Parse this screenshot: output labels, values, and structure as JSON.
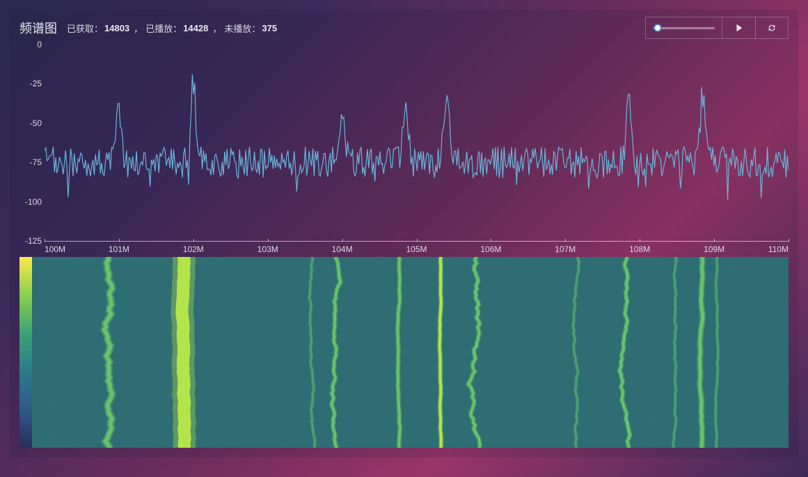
{
  "header": {
    "title": "频谱图",
    "stats": {
      "acquired_label": "已获取：",
      "acquired_value": "14803",
      "played_label": "已播放：",
      "played_value": "14428",
      "unplayed_label": "未播放：",
      "unplayed_value": "375",
      "separator": "，"
    },
    "slider": {
      "position_pct": 8
    }
  },
  "spectrum_chart": {
    "type": "line",
    "line_color": "#6ab5d9",
    "line_width": 1.2,
    "ylim": [
      -125,
      0
    ],
    "y_ticks": [
      0,
      -25,
      -50,
      -75,
      -100,
      -125
    ],
    "x_ticks": [
      "100M",
      "101M",
      "102M",
      "103M",
      "104M",
      "105M",
      "106M",
      "107M",
      "108M",
      "109M",
      "110M"
    ],
    "tick_fontsize": 12,
    "tick_color": "#dcdce8",
    "axis_color": "rgba(255,255,255,0.6)",
    "peaks_freq_mhz": [
      101,
      102,
      104,
      104.85,
      105.4,
      107.85,
      108.85
    ],
    "peaks_db": [
      -40,
      -25,
      -41,
      -38,
      -30,
      -38,
      -30
    ],
    "noise_floor_db": -75,
    "noise_amplitude_db": 10
  },
  "waterfall": {
    "type": "heatmap",
    "background_color": "#2d6d73",
    "noise_tint": "#357a7e",
    "signal_colors": {
      "strong": "#b8e84a",
      "medium": "#6fcf6a",
      "weak": "#4fa86e"
    },
    "colorbar_gradient": [
      "#fce94a",
      "#8bd14c",
      "#3aa374",
      "#2b7a8a",
      "#2e5a8a",
      "#2b2d5c"
    ],
    "signals": [
      {
        "freq_mhz": 101.0,
        "strength": "medium",
        "width": 6,
        "wobble": 14
      },
      {
        "freq_mhz": 102.0,
        "strength": "strong",
        "width": 18,
        "wobble": 4
      },
      {
        "freq_mhz": 103.7,
        "strength": "weak",
        "width": 3,
        "wobble": 6
      },
      {
        "freq_mhz": 104.0,
        "strength": "medium",
        "width": 4,
        "wobble": 10
      },
      {
        "freq_mhz": 104.85,
        "strength": "medium",
        "width": 4,
        "wobble": 3
      },
      {
        "freq_mhz": 105.4,
        "strength": "strong",
        "width": 4,
        "wobble": 2
      },
      {
        "freq_mhz": 105.85,
        "strength": "medium",
        "width": 4,
        "wobble": 16
      },
      {
        "freq_mhz": 107.2,
        "strength": "weak",
        "width": 3,
        "wobble": 8
      },
      {
        "freq_mhz": 107.85,
        "strength": "medium",
        "width": 4,
        "wobble": 10
      },
      {
        "freq_mhz": 108.5,
        "strength": "weak",
        "width": 3,
        "wobble": 6
      },
      {
        "freq_mhz": 108.85,
        "strength": "medium",
        "width": 5,
        "wobble": 4
      },
      {
        "freq_mhz": 109.05,
        "strength": "weak",
        "width": 3,
        "wobble": 4
      }
    ],
    "freq_range_mhz": [
      100,
      110
    ]
  }
}
